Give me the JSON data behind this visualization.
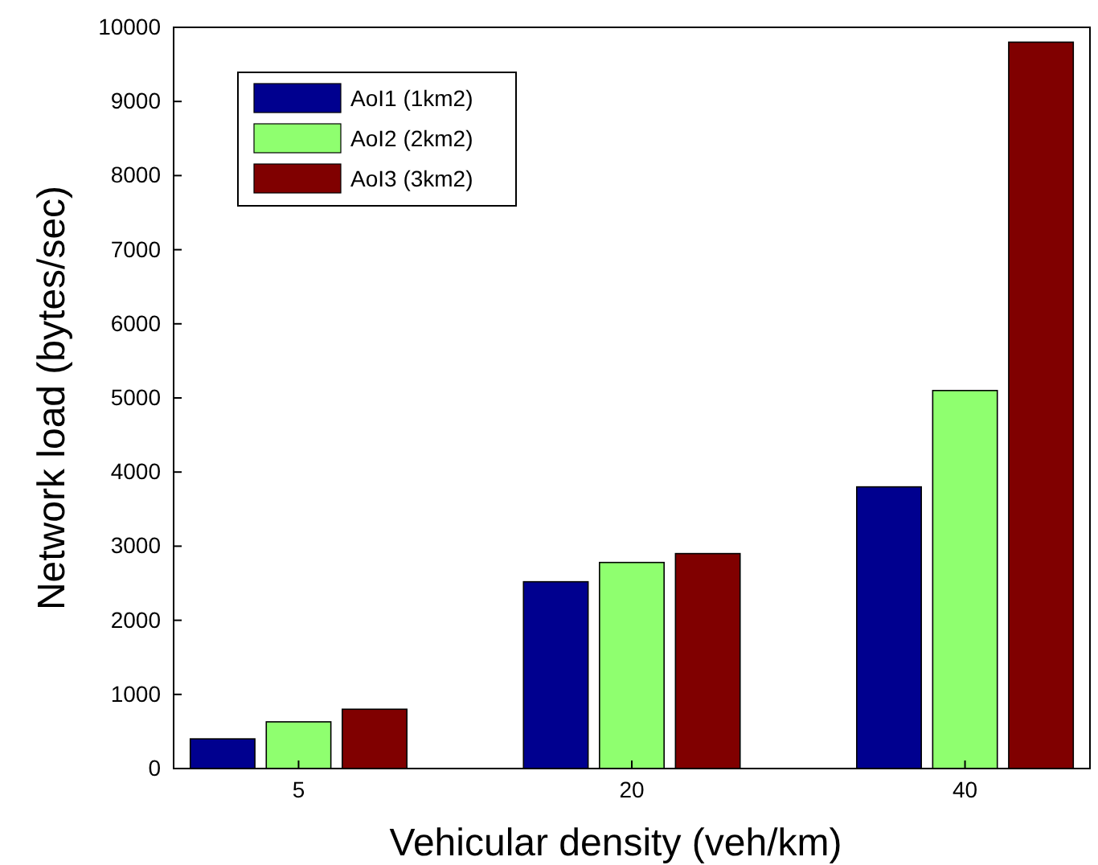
{
  "chart_data": {
    "type": "bar",
    "xlabel": "Vehicular density (veh/km)",
    "ylabel": "Network load (bytes/sec)",
    "categories": [
      "5",
      "20",
      "40"
    ],
    "series": [
      {
        "name": "AoI1 (1km2)",
        "color": "#00008f",
        "values": [
          400,
          2520,
          3800
        ]
      },
      {
        "name": "AoI2 (2km2)",
        "color": "#8fff6f",
        "values": [
          630,
          2780,
          5100
        ]
      },
      {
        "name": "AoI3 (3km2)",
        "color": "#800000",
        "values": [
          800,
          2900,
          9800
        ]
      }
    ],
    "ylim": [
      0,
      10000
    ],
    "yticks": [
      0,
      1000,
      2000,
      3000,
      4000,
      5000,
      6000,
      7000,
      8000,
      9000,
      10000
    ],
    "legend": "top left"
  }
}
